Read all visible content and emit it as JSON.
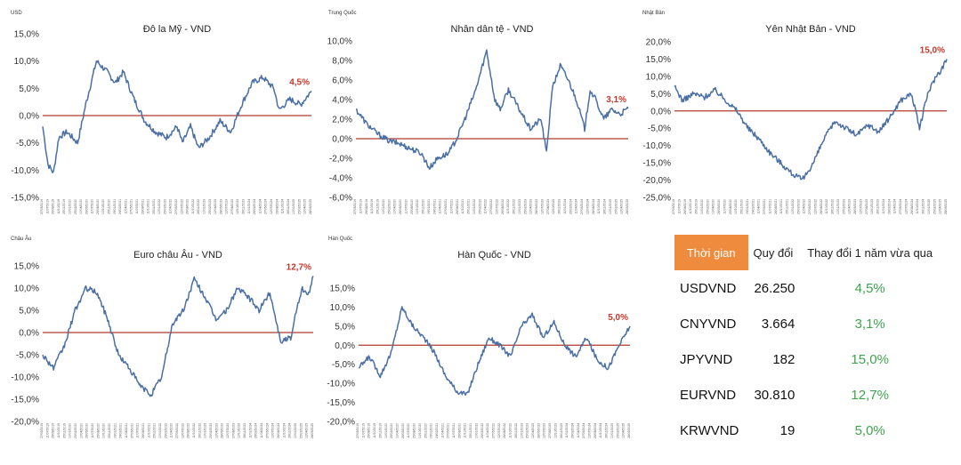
{
  "chart_data": [
    {
      "type": "line",
      "region": "USD",
      "title": "Đô la Mỹ - VND",
      "yticks": [
        "15,0%",
        "10,0%",
        "5,0%",
        "0,0%",
        "-5,0%",
        "-10,0%",
        "-15,0%"
      ],
      "ylim": [
        -15,
        15
      ],
      "end_label": "4,5%",
      "line_color": "#4a6fa5",
      "zero_color": "#b03a2e",
      "x_range": [
        "27/05/2019",
        "28/05/2025"
      ],
      "series": [
        {
          "x": [
            0,
            2,
            4,
            6,
            9,
            13,
            16,
            20,
            24,
            27,
            30,
            34,
            38,
            42,
            46,
            50,
            52,
            55,
            58,
            62,
            66,
            70,
            74,
            78,
            82,
            86,
            88,
            92,
            96,
            100
          ],
          "values": [
            -2,
            -9,
            -10.5,
            -4,
            -3,
            -5,
            2,
            10,
            8,
            6,
            8,
            3,
            -1,
            -3,
            -4,
            -2,
            -5,
            -2,
            -6,
            -4,
            -1,
            -3,
            2,
            6,
            7,
            5,
            1,
            3,
            2,
            4.5
          ]
        }
      ]
    },
    {
      "type": "line",
      "region": "Trung Quốc",
      "title": "Nhân dân tệ - VND",
      "yticks": [
        "10,0%",
        "8,0%",
        "6,0%",
        "4,0%",
        "2,0%",
        "0,0%",
        "-2,0%",
        "-4,0%",
        "-6,0%"
      ],
      "ylim": [
        -6,
        10
      ],
      "end_label": "3,1%",
      "line_color": "#4a6fa5",
      "zero_color": "#b03a2e",
      "x_range": [
        "27/05/2019",
        "28/05/2025"
      ],
      "series": [
        {
          "x": [
            0,
            4,
            8,
            12,
            16,
            20,
            24,
            27,
            30,
            34,
            37,
            40,
            44,
            48,
            51,
            53,
            56,
            60,
            64,
            68,
            70,
            72,
            75,
            78,
            81,
            84,
            86,
            88,
            91,
            94,
            97,
            100
          ],
          "values": [
            3,
            1.5,
            0.5,
            -0.2,
            -0.5,
            -1,
            -1.5,
            -3,
            -2,
            -1.5,
            0,
            2,
            5,
            9,
            4,
            3,
            5,
            3,
            1,
            2,
            -1.5,
            5,
            7.5,
            6,
            4,
            1,
            5,
            4,
            2,
            3,
            2.5,
            3.1
          ]
        }
      ]
    },
    {
      "type": "line",
      "region": "Nhật Bản",
      "title": "Yên Nhật Bản - VND",
      "yticks": [
        "20,0%",
        "15,0%",
        "10,0%",
        "5,0%",
        "0,0%",
        "-5,0%",
        "-10,0%",
        "-15,0%",
        "-20,0%",
        "-25,0%"
      ],
      "ylim": [
        -25,
        20
      ],
      "end_label": "15,0%",
      "line_color": "#4a6fa5",
      "zero_color": "#b03a2e",
      "x_range": [
        "27/05/2019",
        "28/05/2025"
      ],
      "series": [
        {
          "x": [
            0,
            3,
            7,
            11,
            15,
            19,
            23,
            27,
            31,
            35,
            39,
            43,
            47,
            51,
            55,
            59,
            63,
            67,
            71,
            75,
            79,
            83,
            87,
            90,
            93,
            96,
            98,
            100
          ],
          "values": [
            7,
            3,
            5,
            4,
            6,
            3,
            0,
            -5,
            -8,
            -12,
            -15,
            -18,
            -20,
            -15,
            -8,
            -3,
            -5,
            -7,
            -4,
            -6,
            -2,
            3,
            5,
            -5,
            5,
            10,
            12,
            15
          ]
        }
      ]
    },
    {
      "type": "line",
      "region": "Châu Âu",
      "title": "Euro châu Âu - VND",
      "yticks": [
        "15,0%",
        "10,0%",
        "5,0%",
        "0,0%",
        "-5,0%",
        "-10,0%",
        "-15,0%",
        "-20,0%"
      ],
      "ylim": [
        -20,
        15
      ],
      "end_label": "12,7%",
      "line_color": "#4a6fa5",
      "zero_color": "#b03a2e",
      "x_range": [
        "27/05/2019",
        "28/05/2025"
      ],
      "series": [
        {
          "x": [
            0,
            4,
            8,
            12,
            16,
            20,
            24,
            28,
            32,
            36,
            40,
            44,
            48,
            52,
            56,
            60,
            64,
            68,
            72,
            76,
            80,
            84,
            88,
            92,
            94,
            96,
            98,
            100
          ],
          "values": [
            -5,
            -8,
            -3,
            5,
            10,
            9,
            3,
            -5,
            -8,
            -12,
            -14,
            -10,
            2,
            5,
            12,
            8,
            3,
            5,
            10,
            8,
            5,
            9,
            -2,
            -1,
            6,
            10,
            8,
            12.7
          ]
        }
      ]
    },
    {
      "type": "line",
      "region": "Hàn Quốc",
      "title": "Hàn Quốc - VND",
      "yticks": [
        "15,0%",
        "10,0%",
        "5,0%",
        "0,0%",
        "-5,0%",
        "-10,0%",
        "-15,0%",
        "-20,0%"
      ],
      "ylim": [
        -20,
        15
      ],
      "end_label": "5,0%",
      "line_color": "#4a6fa5",
      "zero_color": "#b03a2e",
      "x_range": [
        "27/05/2019",
        "28/05/2025"
      ],
      "series": [
        {
          "x": [
            0,
            4,
            8,
            12,
            16,
            20,
            24,
            28,
            32,
            36,
            40,
            44,
            48,
            52,
            56,
            60,
            64,
            68,
            72,
            76,
            80,
            84,
            88,
            92,
            96,
            100
          ],
          "values": [
            -6,
            -3,
            -8,
            -2,
            10,
            5,
            2,
            -2,
            -8,
            -12,
            -13,
            -5,
            2,
            0,
            -3,
            5,
            8,
            2,
            6,
            0,
            -3,
            2,
            -4,
            -6,
            0,
            5
          ]
        }
      ]
    }
  ],
  "table": {
    "headers": [
      "Thời gian",
      "Quy đổi",
      "Thay đổi 1 năm vừa qua"
    ],
    "rows": [
      {
        "pair": "USDVND",
        "rate": "26.250",
        "change": "4,5%"
      },
      {
        "pair": "CNYVND",
        "rate": "3.664",
        "change": "3,1%"
      },
      {
        "pair": "JPYVND",
        "rate": "182",
        "change": "15,0%"
      },
      {
        "pair": "EURVND",
        "rate": "30.810",
        "change": "12,7%"
      },
      {
        "pair": "KRWVND",
        "rate": "19",
        "change": "5,0%"
      }
    ]
  }
}
